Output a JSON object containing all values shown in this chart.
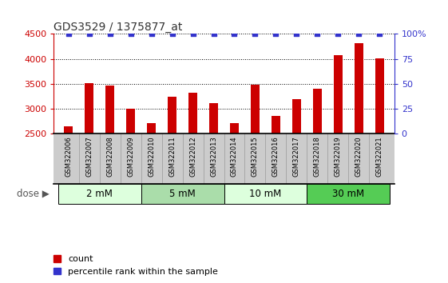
{
  "title": "GDS3529 / 1375877_at",
  "samples": [
    "GSM322006",
    "GSM322007",
    "GSM322008",
    "GSM322009",
    "GSM322010",
    "GSM322011",
    "GSM322012",
    "GSM322013",
    "GSM322014",
    "GSM322015",
    "GSM322016",
    "GSM322017",
    "GSM322018",
    "GSM322019",
    "GSM322020",
    "GSM322021"
  ],
  "counts": [
    2650,
    3520,
    3470,
    3010,
    2720,
    3250,
    3320,
    3110,
    2720,
    3480,
    2860,
    3200,
    3400,
    4080,
    4320,
    4010
  ],
  "percentile": [
    100,
    100,
    100,
    100,
    100,
    100,
    100,
    100,
    100,
    100,
    100,
    100,
    100,
    100,
    100,
    100
  ],
  "bar_color": "#cc0000",
  "percentile_color": "#3333cc",
  "ylim_left": [
    2500,
    4500
  ],
  "ylim_right": [
    0,
    100
  ],
  "yticks_left": [
    2500,
    3000,
    3500,
    4000,
    4500
  ],
  "yticks_right": [
    0,
    25,
    50,
    75,
    100
  ],
  "groups": [
    {
      "label": "2 mM",
      "start": 0,
      "end": 4,
      "color": "#ddffdd"
    },
    {
      "label": "5 mM",
      "start": 4,
      "end": 8,
      "color": "#aaddaa"
    },
    {
      "label": "10 mM",
      "start": 8,
      "end": 12,
      "color": "#ddffdd"
    },
    {
      "label": "30 mM",
      "start": 12,
      "end": 16,
      "color": "#55cc55"
    }
  ],
  "dose_label": "dose",
  "legend_count_label": "count",
  "legend_percentile_label": "percentile rank within the sample",
  "grid_color": "#000000",
  "title_color": "#333333",
  "left_axis_color": "#cc0000",
  "right_axis_color": "#3333cc",
  "bar_bottom": 2500,
  "bg_color": "#ffffff",
  "tick_area_bg": "#cccccc",
  "bar_width": 0.4
}
